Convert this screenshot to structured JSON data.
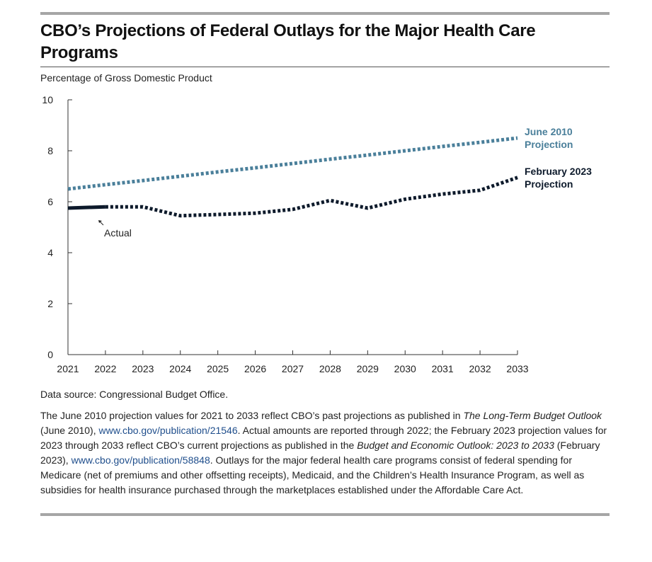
{
  "chart_data": {
    "type": "line",
    "title": "CBO’s Projections of Federal Outlays for the Major Health Care Programs",
    "ylabel": "Percentage of Gross Domestic Product",
    "xlabel": "",
    "x": [
      2021,
      2022,
      2023,
      2024,
      2025,
      2026,
      2027,
      2028,
      2029,
      2030,
      2031,
      2032,
      2033
    ],
    "ylim": [
      0,
      10
    ],
    "yticks": [
      0,
      2,
      4,
      6,
      8,
      10
    ],
    "grid": false,
    "series": [
      {
        "name": "June 2010 Projection",
        "label_lines": [
          "June 2010",
          "Projection"
        ],
        "color": "#4a7f9a",
        "style": "dotted",
        "values": [
          6.5,
          6.67,
          6.83,
          7.0,
          7.17,
          7.33,
          7.5,
          7.67,
          7.83,
          8.0,
          8.17,
          8.33,
          8.5
        ]
      },
      {
        "name": "February 2023 Projection",
        "label_lines": [
          "February 2023",
          "Projection"
        ],
        "color": "#0d1a2b",
        "style": "dotted",
        "values": [
          null,
          5.8,
          5.8,
          5.45,
          5.5,
          5.55,
          5.7,
          6.05,
          5.75,
          6.1,
          6.3,
          6.45,
          6.95
        ]
      },
      {
        "name": "Actual",
        "color": "#0d1a2b",
        "style": "solid",
        "values": [
          5.75,
          5.8,
          null,
          null,
          null,
          null,
          null,
          null,
          null,
          null,
          null,
          null,
          null
        ]
      }
    ],
    "annotations": [
      {
        "text": "Actual",
        "x": 2022,
        "y": 5.8
      }
    ]
  },
  "source": "Data source: Congressional Budget Office.",
  "notes": [
    {
      "t": "The June 2010 projection values for 2021 to 2033 reflect CBO’s past projections as published in "
    },
    {
      "t": "The Long-Term Budget Outlook",
      "style": "italic"
    },
    {
      "t": " (June 2010), "
    },
    {
      "t": "www.cbo.gov/publication/21546",
      "style": "link"
    },
    {
      "t": ". Actual amounts are reported through 2022; the February 2023 projection values for 2023 through 2033 reflect CBO’s current projections as published in the "
    },
    {
      "t": "Budget and Economic Outlook: 2023 to 2033",
      "style": "italic"
    },
    {
      "t": " (February 2023), "
    },
    {
      "t": "www.cbo.gov/publication/58848",
      "style": "link"
    },
    {
      "t": ". Outlays for the major federal health care programs consist of federal spending for Medicare (net of premiums and other offsetting receipts), Medicaid, and the Children’s Health Insurance Program, as well as subsidies for health insurance purchased through the marketplaces established under the Affordable Care Act."
    }
  ]
}
